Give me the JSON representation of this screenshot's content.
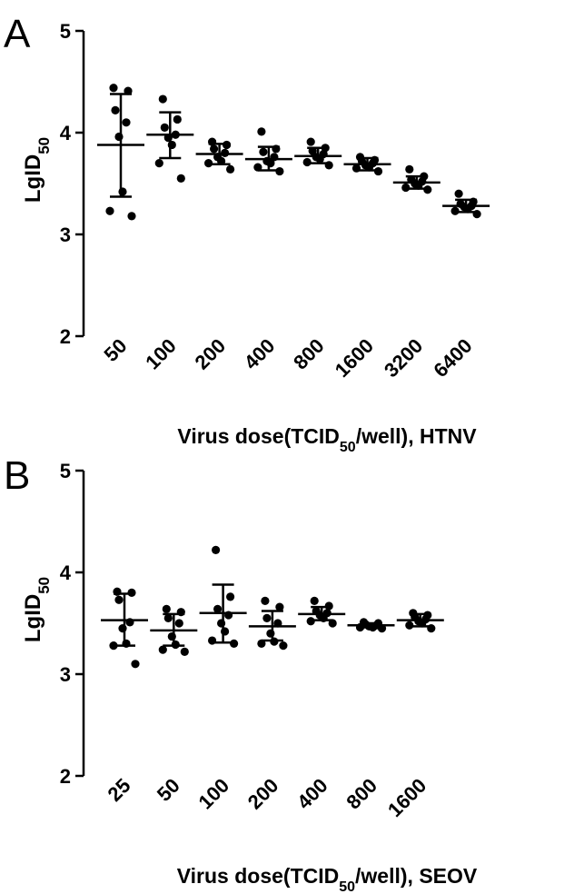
{
  "chart_data": [
    {
      "type": "scatter",
      "panel": "A",
      "title": "",
      "xlabel": "Virus dose(TCID50/well), HTNV",
      "xlabel_parts": {
        "pre": "Virus dose(TCID",
        "sub": "50",
        "post": "/well), HTNV"
      },
      "ylabel": "LgID50",
      "ylabel_parts": {
        "pre": "LgID",
        "sub": "50"
      },
      "ylim": [
        2,
        5
      ],
      "yticks": [
        "2",
        "3",
        "4",
        "5"
      ],
      "categories": [
        "50",
        "100",
        "200",
        "400",
        "800",
        "1600",
        "3200",
        "6400"
      ],
      "summary": {
        "mean": [
          3.88,
          3.98,
          3.79,
          3.74,
          3.77,
          3.69,
          3.51,
          3.28
        ],
        "sd_low": [
          3.37,
          3.75,
          3.69,
          3.63,
          3.7,
          3.63,
          3.45,
          3.22
        ],
        "sd_high": [
          4.38,
          4.2,
          3.89,
          3.86,
          3.85,
          3.75,
          3.57,
          3.34
        ]
      },
      "points": [
        [
          4.44,
          4.41,
          4.22,
          4.1,
          3.96,
          3.42,
          3.23,
          3.18
        ],
        [
          4.33,
          4.13,
          4.05,
          3.98,
          3.95,
          3.88,
          3.7,
          3.55
        ],
        [
          3.91,
          3.88,
          3.84,
          3.8,
          3.76,
          3.72,
          3.7,
          3.64
        ],
        [
          4.01,
          3.84,
          3.81,
          3.76,
          3.72,
          3.7,
          3.66,
          3.62
        ],
        [
          3.91,
          3.85,
          3.82,
          3.79,
          3.76,
          3.74,
          3.71,
          3.68
        ],
        [
          3.76,
          3.73,
          3.72,
          3.7,
          3.68,
          3.66,
          3.65,
          3.62
        ],
        [
          3.64,
          3.57,
          3.54,
          3.52,
          3.5,
          3.48,
          3.46,
          3.44
        ],
        [
          3.4,
          3.32,
          3.3,
          3.28,
          3.27,
          3.25,
          3.23,
          3.2
        ]
      ]
    },
    {
      "type": "scatter",
      "panel": "B",
      "title": "",
      "xlabel": "Virus dose(TCID50/well), SEOV",
      "xlabel_parts": {
        "pre": "Virus dose(TCID",
        "sub": "50",
        "post": "/well), SEOV"
      },
      "ylabel": "LgID50",
      "ylabel_parts": {
        "pre": "LgID",
        "sub": "50"
      },
      "ylim": [
        2,
        5
      ],
      "yticks": [
        "2",
        "3",
        "4",
        "5"
      ],
      "categories": [
        "25",
        "50",
        "100",
        "200",
        "400",
        "800",
        "1600"
      ],
      "summary": {
        "mean": [
          3.53,
          3.43,
          3.6,
          3.47,
          3.59,
          3.48,
          3.53
        ],
        "sd_low": [
          3.28,
          3.28,
          3.31,
          3.33,
          3.53,
          3.46,
          3.47
        ],
        "sd_high": [
          3.79,
          3.59,
          3.88,
          3.62,
          3.66,
          3.5,
          3.59
        ]
      },
      "points": [
        [
          3.81,
          3.8,
          3.73,
          3.51,
          3.45,
          3.3,
          3.28,
          3.1
        ],
        [
          3.64,
          3.61,
          3.55,
          3.5,
          3.37,
          3.29,
          3.24,
          3.22
        ],
        [
          4.22,
          3.76,
          3.64,
          3.58,
          3.5,
          3.42,
          3.33,
          3.3
        ],
        [
          3.72,
          3.66,
          3.55,
          3.5,
          3.4,
          3.32,
          3.3,
          3.28
        ],
        [
          3.72,
          3.67,
          3.62,
          3.6,
          3.58,
          3.55,
          3.52,
          3.5
        ],
        [
          3.51,
          3.5,
          3.49,
          3.48,
          3.47,
          3.46,
          3.46,
          3.45
        ],
        [
          3.6,
          3.58,
          3.56,
          3.54,
          3.52,
          3.5,
          3.48,
          3.45
        ]
      ]
    }
  ]
}
